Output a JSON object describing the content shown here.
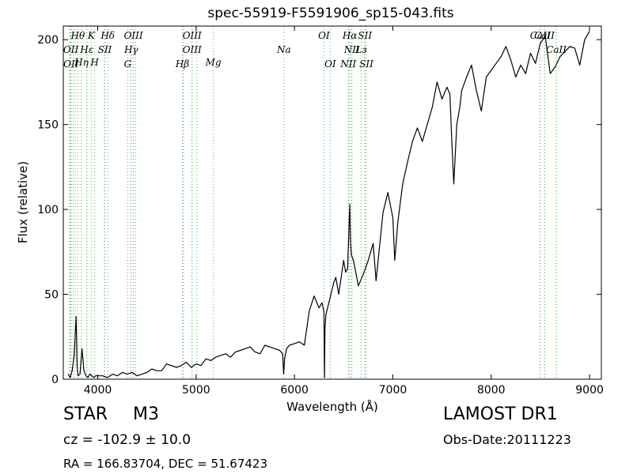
{
  "chart_data": {
    "type": "line",
    "title": "spec-55919-F5591906_sp15-043.fits",
    "xlabel": "Wavelength (Å)",
    "ylabel": "Flux (relative)",
    "xlim": [
      3650,
      9120
    ],
    "ylim": [
      0,
      208
    ],
    "xticks": [
      4000,
      5000,
      6000,
      7000,
      8000,
      9000
    ],
    "yticks": [
      0,
      50,
      100,
      150,
      200
    ],
    "grid": false,
    "line_color": "#000000",
    "marker_color": "#2ca02c",
    "series": [
      {
        "x": [
          3700,
          3720,
          3740,
          3760,
          3780,
          3790,
          3800,
          3820,
          3840,
          3860,
          3880,
          3900,
          3920,
          3940,
          3960,
          3980,
          4000,
          4050,
          4100,
          4150,
          4200,
          4250,
          4300,
          4350,
          4400,
          4450,
          4500,
          4550,
          4600,
          4650,
          4700,
          4750,
          4800,
          4850,
          4900,
          4950,
          5000,
          5050,
          5100,
          5150,
          5200,
          5250,
          5300,
          5350,
          5400,
          5450,
          5500,
          5550,
          5600,
          5650,
          5700,
          5750,
          5800,
          5850,
          5880,
          5890,
          5900,
          5920,
          5950,
          6000,
          6050,
          6100,
          6120,
          6150,
          6200,
          6250,
          6280,
          6300,
          6305,
          6310,
          6320,
          6350,
          6400,
          6420,
          6450,
          6480,
          6500,
          6520,
          6540,
          6555,
          6563,
          6570,
          6580,
          6600,
          6650,
          6700,
          6720,
          6750,
          6800,
          6830,
          6860,
          6900,
          6950,
          7000,
          7020,
          7050,
          7100,
          7150,
          7200,
          7250,
          7300,
          7350,
          7400,
          7450,
          7500,
          7550,
          7580,
          7600,
          7620,
          7650,
          7680,
          7700,
          7750,
          7800,
          7850,
          7900,
          7950,
          8000,
          8050,
          8100,
          8150,
          8200,
          8250,
          8300,
          8350,
          8400,
          8450,
          8500,
          8550,
          8600,
          8650,
          8700,
          8750,
          8800,
          8850,
          8900,
          8950,
          9000
        ],
        "values": [
          3,
          1,
          5,
          14,
          37,
          8,
          2,
          3,
          18,
          5,
          2,
          1,
          3,
          2,
          1,
          2,
          2,
          2,
          1,
          3,
          2,
          4,
          3,
          4,
          2,
          3,
          4,
          6,
          5,
          5,
          9,
          8,
          7,
          8,
          10,
          7,
          9,
          8,
          12,
          11,
          13,
          14,
          15,
          13,
          16,
          17,
          18,
          19,
          16,
          15,
          20,
          19,
          18,
          17,
          15,
          3,
          12,
          18,
          20,
          21,
          22,
          20,
          28,
          40,
          49,
          42,
          45,
          40,
          1,
          30,
          38,
          45,
          57,
          60,
          50,
          62,
          70,
          63,
          65,
          90,
          103,
          80,
          73,
          70,
          55,
          62,
          65,
          70,
          80,
          58,
          75,
          98,
          110,
          95,
          70,
          92,
          115,
          128,
          140,
          148,
          140,
          150,
          160,
          175,
          165,
          172,
          168,
          140,
          115,
          150,
          160,
          170,
          178,
          185,
          170,
          158,
          178,
          182,
          186,
          190,
          196,
          188,
          178,
          185,
          180,
          192,
          186,
          198,
          202,
          180,
          184,
          190,
          193,
          196,
          195,
          185,
          200,
          205
        ]
      }
    ],
    "lines": {
      "top_row": [
        {
          "label": "Hθ",
          "x": 3798
        },
        {
          "label": "K",
          "x": 3934
        },
        {
          "label": "Hδ",
          "x": 4102
        },
        {
          "label": "OIII",
          "x": 4363
        },
        {
          "label": "OIII",
          "x": 4959
        },
        {
          "label": "OI",
          "x": 6300
        },
        {
          "label": "Hα",
          "x": 6563
        },
        {
          "label": "SII",
          "x": 6717
        },
        {
          "label": "CaII",
          "x": 8498
        },
        {
          "label": "CaII",
          "x": 8542
        }
      ],
      "row2": [
        {
          "label": "OII",
          "x": 3727
        },
        {
          "label": "Hε",
          "x": 3889
        },
        {
          "label": "SII",
          "x": 4072
        },
        {
          "label": "Hγ",
          "x": 4340
        },
        {
          "label": "OIII",
          "x": 4959
        },
        {
          "label": "Na",
          "x": 5893
        },
        {
          "label": "NII",
          "x": 6584
        },
        {
          "label": "Lз",
          "x": 6678
        },
        {
          "label": "CaII",
          "x": 8662
        }
      ],
      "row3": [
        {
          "label": "Hη",
          "x": 3835
        },
        {
          "label": "H",
          "x": 3969
        },
        {
          "label": "Mg",
          "x": 5175
        }
      ],
      "row4": [
        {
          "label": "OII",
          "x": 3729
        },
        {
          "label": "G",
          "x": 4305
        },
        {
          "label": "Hβ",
          "x": 4861
        },
        {
          "label": "OI",
          "x": 6364
        },
        {
          "label": "NII",
          "x": 6548
        },
        {
          "label": "SII",
          "x": 6731
        }
      ],
      "extra_dotted_x": [
        3712,
        3722,
        3750,
        3771,
        3889,
        4068,
        4340,
        4384,
        4871,
        5007,
        6548,
        6583,
        6716,
        8498,
        8542,
        8662
      ]
    }
  },
  "info": {
    "obj_type": "STAR",
    "obj_class": "M3",
    "survey": "LAMOST DR1",
    "cz": "cz = -102.9 ± 10.0",
    "obs_date": "Obs-Date:20111223",
    "ra_dec": "RA = 166.83704, DEC = 51.67423"
  }
}
